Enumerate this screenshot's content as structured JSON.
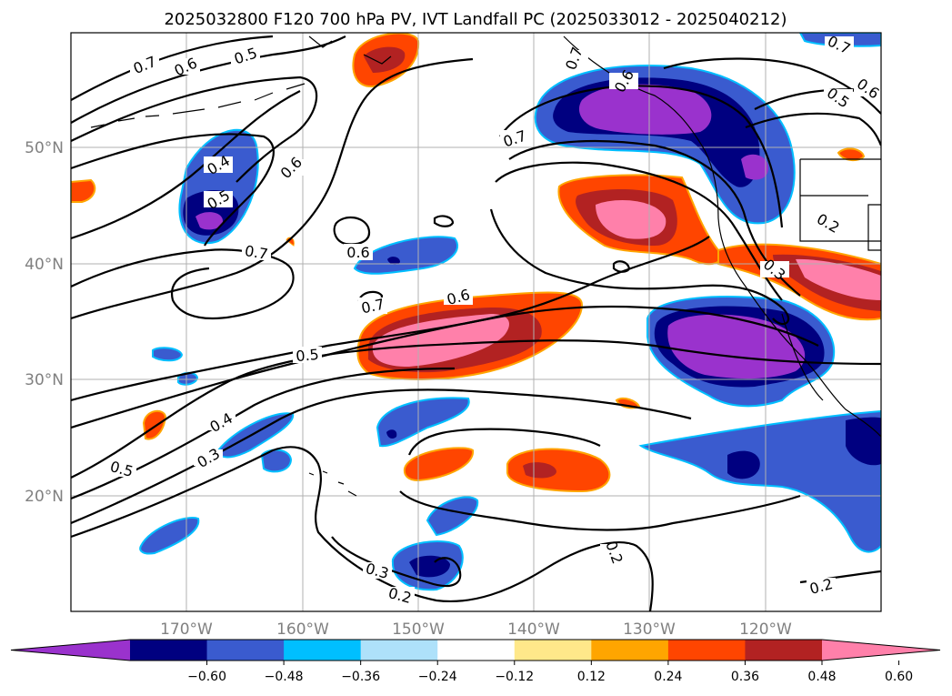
{
  "title": "2025032800 F120 700 hPa PV, IVT Landfall PC (2025033012 - 2025040212)",
  "lon_ticks": [
    "170°W",
    "160°W",
    "150°W",
    "140°W",
    "130°W",
    "120°W"
  ],
  "lat_ticks": [
    "50°N",
    "40°N",
    "30°N",
    "20°N"
  ],
  "colorbar": {
    "colors": [
      "#9a32cd",
      "#000080",
      "#3a5bcf",
      "#00bfff",
      "#aee1fa",
      "#ffffff",
      "#ffe88a",
      "#ffa500",
      "#ff4500",
      "#b22222",
      "#ff80aa"
    ],
    "tick_labels": [
      "−0.60",
      "−0.48",
      "−0.36",
      "−0.24",
      "−0.12",
      "0.12",
      "0.24",
      "0.36",
      "0.48",
      "0.60"
    ]
  },
  "contour_labels": [
    {
      "id": "c1",
      "text": "0.7"
    },
    {
      "id": "c2",
      "text": "0.6"
    },
    {
      "id": "c3",
      "text": "0.5"
    },
    {
      "id": "c4",
      "text": "0.7"
    },
    {
      "id": "c5",
      "text": "0.6"
    },
    {
      "id": "c6",
      "text": "0.4"
    },
    {
      "id": "c7",
      "text": "0.5"
    },
    {
      "id": "c8",
      "text": "0.7"
    },
    {
      "id": "c9",
      "text": "0.6"
    },
    {
      "id": "c10",
      "text": "0.7"
    },
    {
      "id": "c11",
      "text": "0.6"
    },
    {
      "id": "c12",
      "text": "0.5"
    },
    {
      "id": "c13",
      "text": "0.4"
    },
    {
      "id": "c14",
      "text": "0.3"
    },
    {
      "id": "c15",
      "text": "0.5"
    },
    {
      "id": "c16",
      "text": "0.3"
    },
    {
      "id": "c17",
      "text": "0.2"
    },
    {
      "id": "c18",
      "text": "0.2"
    },
    {
      "id": "c19",
      "text": "0.2"
    },
    {
      "id": "c20",
      "text": "0.2"
    },
    {
      "id": "c21",
      "text": "0.3"
    },
    {
      "id": "c22",
      "text": "0.7"
    },
    {
      "id": "c23",
      "text": "0.6"
    },
    {
      "id": "c24",
      "text": "0.5"
    },
    {
      "id": "c25",
      "text": "0.7"
    },
    {
      "id": "c26",
      "text": "0.6"
    }
  ]
}
